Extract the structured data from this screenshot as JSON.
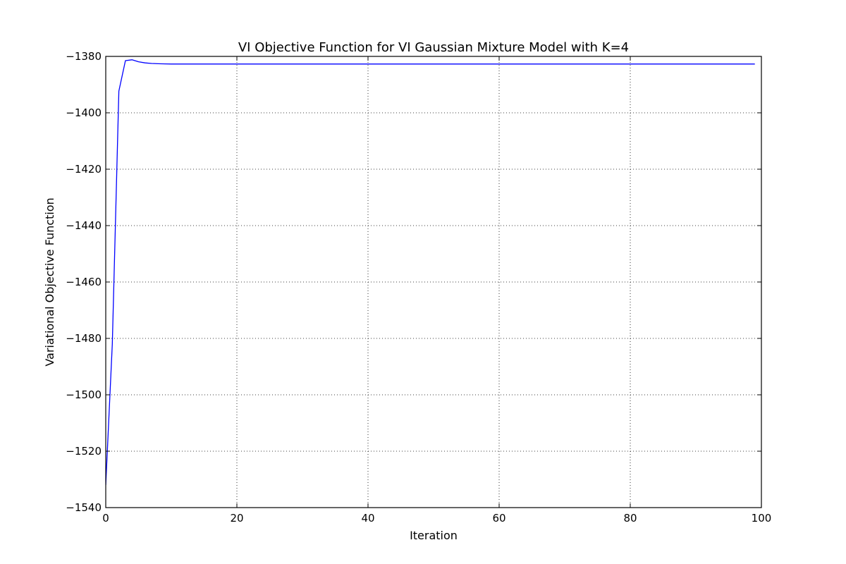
{
  "chart_data": {
    "type": "line",
    "title": "VI Objective Function for VI Gaussian Mixture Model with K=4",
    "xlabel": "Iteration",
    "ylabel": "Variational Objective Function",
    "xlim": [
      0,
      100
    ],
    "ylim": [
      -1540,
      -1380
    ],
    "x_ticks": [
      0,
      20,
      40,
      60,
      80,
      100
    ],
    "y_ticks": [
      -1540,
      -1520,
      -1500,
      -1480,
      -1460,
      -1440,
      -1420,
      -1400,
      -1380
    ],
    "grid": true,
    "legend": "none",
    "series": [
      {
        "color": "#0000ff",
        "x": [
          0,
          1,
          2,
          3,
          4,
          5,
          6,
          7,
          8,
          9,
          10,
          15,
          20,
          30,
          40,
          50,
          60,
          70,
          80,
          90,
          99
        ],
        "y": [
          -1532,
          -1482,
          -1392.3,
          -1381.5,
          -1381.2,
          -1381.9,
          -1382.3,
          -1382.5,
          -1382.6,
          -1382.65,
          -1382.7,
          -1382.7,
          -1382.7,
          -1382.7,
          -1382.7,
          -1382.7,
          -1382.7,
          -1382.7,
          -1382.7,
          -1382.7,
          -1382.7
        ]
      }
    ]
  }
}
